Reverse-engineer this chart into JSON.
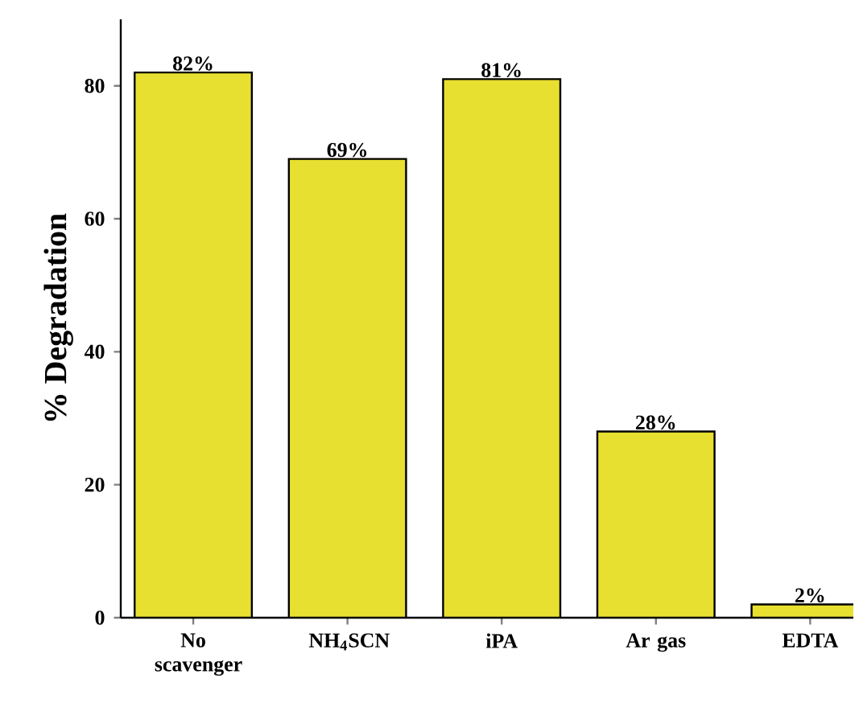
{
  "chart_data": {
    "type": "bar",
    "ylabel": "% Degradation",
    "categories": [
      "No scavenger",
      "NH$_{4}$SCN",
      "iPA",
      "Ar gas",
      "EDTA"
    ],
    "values": [
      82,
      69,
      81,
      28,
      2
    ],
    "value_labels": [
      "82%",
      "69%",
      "81%",
      "28%",
      "2%"
    ],
    "color": "#e8e030",
    "ylim": [
      0,
      90
    ],
    "yticks": [
      0,
      20,
      40,
      60,
      80
    ]
  }
}
